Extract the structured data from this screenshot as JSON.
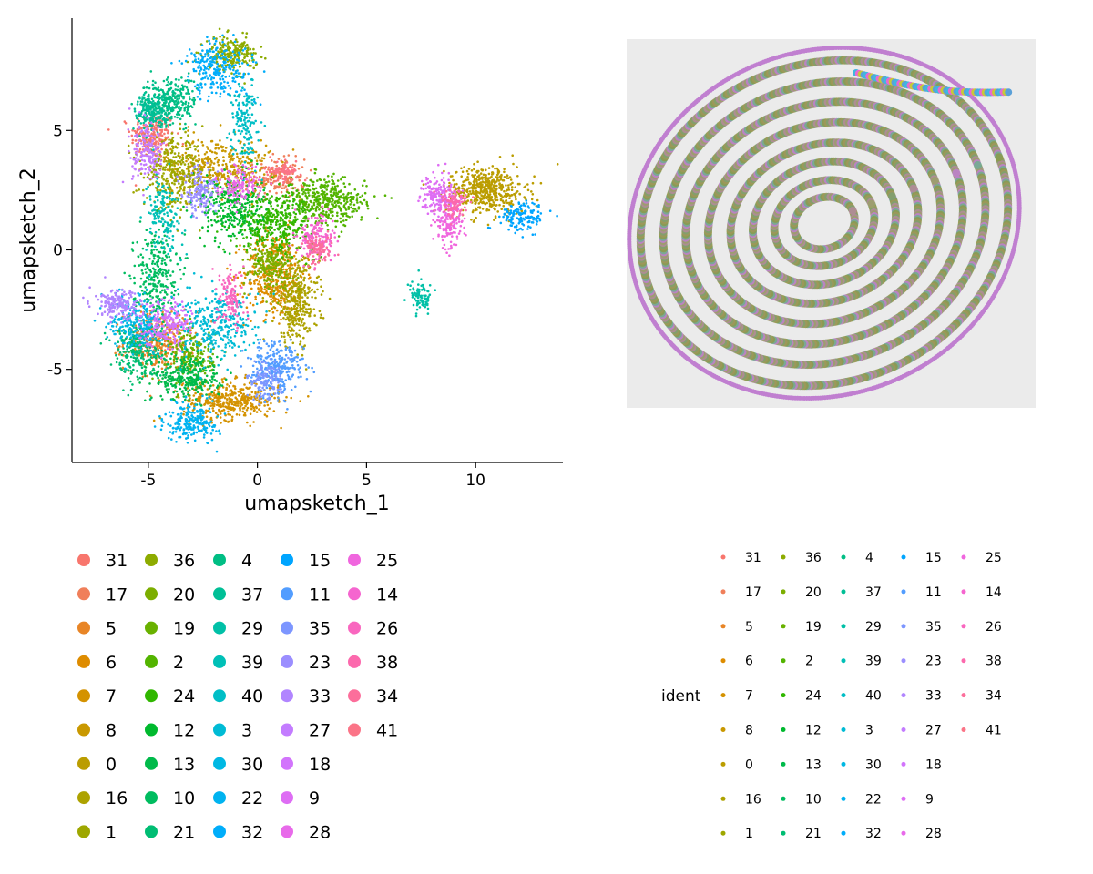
{
  "chart_data": [
    {
      "type": "scatter",
      "title": "",
      "xlabel": "umapsketch_1",
      "ylabel": "umapsketch_2",
      "xlim": [
        -8.5,
        14
      ],
      "ylim": [
        -8.9,
        9.7
      ],
      "xticks": [
        "-5",
        "0",
        "5",
        "10"
      ],
      "xtick_values": [
        -5,
        0,
        5,
        10
      ],
      "yticks": [
        "-5",
        "0",
        "5"
      ],
      "ytick_values": [
        -5,
        0,
        5
      ],
      "grid": false,
      "legend_position": "bottom",
      "clusters": [
        {
          "id": "31",
          "color": "#F8766D",
          "x": -4.8,
          "y": 4.8,
          "sx": 0.5,
          "sy": 0.5,
          "n": 220
        },
        {
          "id": "17",
          "color": "#F07F5A",
          "x": 0.8,
          "y": 3.0,
          "sx": 0.7,
          "sy": 0.4,
          "n": 180
        },
        {
          "id": "5",
          "color": "#E88526",
          "x": -4.5,
          "y": -3.8,
          "sx": 0.8,
          "sy": 0.6,
          "n": 380
        },
        {
          "id": "6",
          "color": "#DE8C00",
          "x": 0.8,
          "y": -1.0,
          "sx": 0.7,
          "sy": 0.9,
          "n": 420
        },
        {
          "id": "7",
          "color": "#D49200",
          "x": -1.2,
          "y": -6.3,
          "sx": 1.1,
          "sy": 0.4,
          "n": 400
        },
        {
          "id": "8",
          "color": "#C99800",
          "x": -1.8,
          "y": 3.5,
          "sx": 1.2,
          "sy": 0.6,
          "n": 360
        },
        {
          "id": "0",
          "color": "#BB9D00",
          "x": 10.5,
          "y": 2.5,
          "sx": 0.9,
          "sy": 0.5,
          "n": 500
        },
        {
          "id": "16",
          "color": "#ADA200",
          "x": 1.8,
          "y": -2.2,
          "sx": 0.5,
          "sy": 0.9,
          "n": 340
        },
        {
          "id": "1",
          "color": "#9EA700",
          "x": -3.8,
          "y": 3.2,
          "sx": 0.7,
          "sy": 0.7,
          "n": 320
        },
        {
          "id": "36",
          "color": "#8DAB00",
          "x": -1.2,
          "y": 8.2,
          "sx": 0.6,
          "sy": 0.35,
          "n": 220
        },
        {
          "id": "20",
          "color": "#7CAE00",
          "x": 0.6,
          "y": -0.6,
          "sx": 0.5,
          "sy": 0.5,
          "n": 200
        },
        {
          "id": "19",
          "color": "#69B100",
          "x": -3.0,
          "y": -4.5,
          "sx": 0.5,
          "sy": 0.6,
          "n": 200
        },
        {
          "id": "2",
          "color": "#53B400",
          "x": 3.2,
          "y": 2.0,
          "sx": 0.9,
          "sy": 0.5,
          "n": 400
        },
        {
          "id": "24",
          "color": "#30B700",
          "x": 0.8,
          "y": 1.2,
          "sx": 0.9,
          "sy": 0.6,
          "n": 360
        },
        {
          "id": "12",
          "color": "#00B92E",
          "x": -1.2,
          "y": 1.8,
          "sx": 0.7,
          "sy": 0.7,
          "n": 300
        },
        {
          "id": "13",
          "color": "#00BA4A",
          "x": -3.2,
          "y": -5.3,
          "sx": 0.8,
          "sy": 0.5,
          "n": 320
        },
        {
          "id": "10",
          "color": "#00BC5F",
          "x": -4.7,
          "y": -1.0,
          "sx": 0.5,
          "sy": 0.9,
          "n": 260
        },
        {
          "id": "21",
          "color": "#00BD73",
          "x": -5.5,
          "y": -4.2,
          "sx": 0.6,
          "sy": 0.6,
          "n": 260
        },
        {
          "id": "4",
          "color": "#00BE84",
          "x": -4.0,
          "y": 6.2,
          "sx": 0.6,
          "sy": 0.5,
          "n": 280
        },
        {
          "id": "37",
          "color": "#00BF96",
          "x": -4.8,
          "y": 5.8,
          "sx": 0.4,
          "sy": 0.4,
          "n": 180
        },
        {
          "id": "29",
          "color": "#00C0A7",
          "x": 7.5,
          "y": -2.0,
          "sx": 0.25,
          "sy": 0.3,
          "n": 90
        },
        {
          "id": "39",
          "color": "#00C0B7",
          "x": -4.3,
          "y": 1.5,
          "sx": 0.4,
          "sy": 0.8,
          "n": 160
        },
        {
          "id": "40",
          "color": "#00BEC6",
          "x": -0.6,
          "y": 5.5,
          "sx": 0.3,
          "sy": 0.9,
          "n": 160
        },
        {
          "id": "3",
          "color": "#00BBD5",
          "x": -1.8,
          "y": -3.2,
          "sx": 0.9,
          "sy": 0.7,
          "n": 320
        },
        {
          "id": "30",
          "color": "#00B8E3",
          "x": -5.5,
          "y": -3.0,
          "sx": 0.6,
          "sy": 0.6,
          "n": 240
        },
        {
          "id": "22",
          "color": "#00B3F0",
          "x": -3.0,
          "y": -7.2,
          "sx": 0.6,
          "sy": 0.4,
          "n": 220
        },
        {
          "id": "32",
          "color": "#00ADFA",
          "x": -1.8,
          "y": 7.6,
          "sx": 0.8,
          "sy": 0.6,
          "n": 240
        },
        {
          "id": "15",
          "color": "#00A5FF",
          "x": 12.2,
          "y": 1.4,
          "sx": 0.5,
          "sy": 0.3,
          "n": 140
        },
        {
          "id": "11",
          "color": "#529DFF",
          "x": 0.9,
          "y": -4.9,
          "sx": 0.6,
          "sy": 0.6,
          "n": 260
        },
        {
          "id": "35",
          "color": "#7D96FF",
          "x": 0.3,
          "y": -5.5,
          "sx": 0.4,
          "sy": 0.4,
          "n": 120
        },
        {
          "id": "23",
          "color": "#9B8EFF",
          "x": -2.6,
          "y": 2.4,
          "sx": 0.4,
          "sy": 0.5,
          "n": 140
        },
        {
          "id": "33",
          "color": "#B185FF",
          "x": -6.4,
          "y": -2.3,
          "sx": 0.5,
          "sy": 0.3,
          "n": 180
        },
        {
          "id": "27",
          "color": "#C37CFF",
          "x": -5.0,
          "y": 4.0,
          "sx": 0.4,
          "sy": 0.6,
          "n": 160
        },
        {
          "id": "18",
          "color": "#D274FC",
          "x": -4.2,
          "y": -3.0,
          "sx": 0.6,
          "sy": 0.5,
          "n": 200
        },
        {
          "id": "9",
          "color": "#DE6DF4",
          "x": 8.3,
          "y": 2.3,
          "sx": 0.4,
          "sy": 0.4,
          "n": 180
        },
        {
          "id": "28",
          "color": "#E86AEA",
          "x": -0.8,
          "y": 2.7,
          "sx": 0.5,
          "sy": 0.4,
          "n": 140
        },
        {
          "id": "25",
          "color": "#F066DE",
          "x": 8.8,
          "y": 1.0,
          "sx": 0.3,
          "sy": 0.4,
          "n": 140
        },
        {
          "id": "14",
          "color": "#F565CF",
          "x": 2.7,
          "y": 0.5,
          "sx": 0.4,
          "sy": 0.5,
          "n": 160
        },
        {
          "id": "26",
          "color": "#F966BF",
          "x": -1.2,
          "y": -2.0,
          "sx": 0.3,
          "sy": 0.6,
          "n": 120
        },
        {
          "id": "38",
          "color": "#FC69AD",
          "x": 9.0,
          "y": 2.0,
          "sx": 0.3,
          "sy": 0.3,
          "n": 100
        },
        {
          "id": "34",
          "color": "#FC6E9B",
          "x": 2.8,
          "y": 0.0,
          "sx": 0.3,
          "sy": 0.3,
          "n": 90
        },
        {
          "id": "41",
          "color": "#FB7487",
          "x": 1.2,
          "y": 3.3,
          "sx": 0.4,
          "sy": 0.2,
          "n": 80
        }
      ]
    },
    {
      "type": "scatter",
      "title": "",
      "spatial": true,
      "background_color": "#ebebeb",
      "ring_colors": [
        "#8c9a4a",
        "#a0965a",
        "#7fa070",
        "#b58a9a",
        "#9aa06a",
        "#c07fd0",
        "#6fae8e"
      ],
      "highlight_colors": [
        "#3fb8e0",
        "#e86ad0",
        "#c8c838",
        "#5aa0d8"
      ]
    }
  ],
  "legend_a": {
    "columns": [
      [
        {
          "label": "31",
          "color": "#F8766D"
        },
        {
          "label": "17",
          "color": "#F07F5A"
        },
        {
          "label": "5",
          "color": "#E88526"
        },
        {
          "label": "6",
          "color": "#DE8C00"
        },
        {
          "label": "7",
          "color": "#D49200"
        },
        {
          "label": "8",
          "color": "#C99800"
        },
        {
          "label": "0",
          "color": "#BB9D00"
        },
        {
          "label": "16",
          "color": "#ADA200"
        },
        {
          "label": "1",
          "color": "#9EA700"
        }
      ],
      [
        {
          "label": "36",
          "color": "#8DAB00"
        },
        {
          "label": "20",
          "color": "#7CAE00"
        },
        {
          "label": "19",
          "color": "#69B100"
        },
        {
          "label": "2",
          "color": "#53B400"
        },
        {
          "label": "24",
          "color": "#30B700"
        },
        {
          "label": "12",
          "color": "#00B92E"
        },
        {
          "label": "13",
          "color": "#00BA4A"
        },
        {
          "label": "10",
          "color": "#00BC5F"
        },
        {
          "label": "21",
          "color": "#00BD73"
        }
      ],
      [
        {
          "label": "4",
          "color": "#00BE84"
        },
        {
          "label": "37",
          "color": "#00BF96"
        },
        {
          "label": "29",
          "color": "#00C0A7"
        },
        {
          "label": "39",
          "color": "#00C0B7"
        },
        {
          "label": "40",
          "color": "#00BEC6"
        },
        {
          "label": "3",
          "color": "#00BBD5"
        },
        {
          "label": "30",
          "color": "#00B8E3"
        },
        {
          "label": "22",
          "color": "#00B3F0"
        },
        {
          "label": "32",
          "color": "#00ADFA"
        }
      ],
      [
        {
          "label": "15",
          "color": "#00A5FF"
        },
        {
          "label": "11",
          "color": "#529DFF"
        },
        {
          "label": "35",
          "color": "#7D96FF"
        },
        {
          "label": "23",
          "color": "#9B8EFF"
        },
        {
          "label": "33",
          "color": "#B185FF"
        },
        {
          "label": "27",
          "color": "#C37CFF"
        },
        {
          "label": "18",
          "color": "#D274FC"
        },
        {
          "label": "9",
          "color": "#DE6DF4"
        },
        {
          "label": "28",
          "color": "#E86AEA"
        }
      ],
      [
        {
          "label": "25",
          "color": "#F066DE"
        },
        {
          "label": "14",
          "color": "#F565CF"
        },
        {
          "label": "26",
          "color": "#F966BF"
        },
        {
          "label": "38",
          "color": "#FC69AD"
        },
        {
          "label": "34",
          "color": "#FC6E9B"
        },
        {
          "label": "41",
          "color": "#FB7487"
        }
      ]
    ]
  },
  "legend_b": {
    "title": "ident"
  }
}
